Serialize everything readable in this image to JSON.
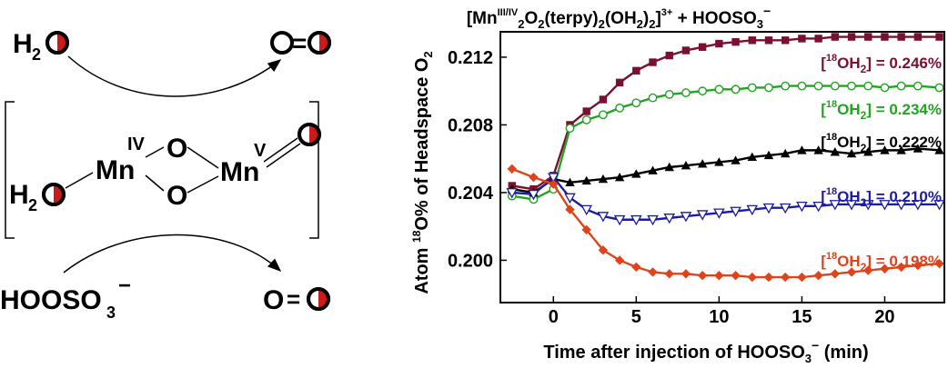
{
  "scheme": {
    "water_top": {
      "main": "H",
      "sub": "2"
    },
    "o2_top": "=",
    "mn_left": "Mn",
    "mn_left_ox": "IV",
    "mn_right": "Mn",
    "mn_right_ox": "V",
    "bridge_o_top": "O",
    "bridge_o_bottom": "O",
    "water_left": {
      "main": "H",
      "sub": "2"
    },
    "oxidant": {
      "main": "HOOSO",
      "sub": "3",
      "sup": "−"
    },
    "o2_bottom": {
      "left": "O",
      "bond": "="
    },
    "colors": {
      "o16": "#ffffff",
      "o18": "#cc1a1a",
      "outline": "#000000"
    }
  },
  "chart_data": {
    "type": "line",
    "title": "[Mn(III/IV)2O2(terpy)2(OH2)2]3+ + HOOSO3−",
    "xlabel": "Time after injection of HOOSO3− (min)",
    "ylabel": "Atom 18O% of Headspace O2",
    "xlim": [
      -3.2,
      23.6
    ],
    "ylim": [
      0.1975,
      0.2135
    ],
    "xticks": [
      0,
      5,
      10,
      15,
      20
    ],
    "yticks": [
      0.2,
      0.204,
      0.208,
      0.212
    ],
    "ytick_labels": [
      "0.200",
      "0.204",
      "0.208",
      "0.212"
    ],
    "series": [
      {
        "name": "[18OH2] = 0.246%",
        "color": "#7a1030",
        "marker": "square",
        "x": [
          -2.5,
          -1.2,
          0,
          1,
          2,
          3,
          4,
          5,
          6,
          7,
          8,
          9,
          10,
          11,
          12,
          13,
          14,
          15,
          16,
          17,
          18,
          19,
          20,
          21,
          22,
          23.3
        ],
        "y": [
          0.2044,
          0.2042,
          0.205,
          0.208,
          0.2088,
          0.2095,
          0.2105,
          0.2112,
          0.2117,
          0.2121,
          0.2124,
          0.2126,
          0.2128,
          0.2129,
          0.213,
          0.213,
          0.213,
          0.2131,
          0.2131,
          0.2132,
          0.2132,
          0.2132,
          0.2132,
          0.2132,
          0.2132,
          0.2132
        ]
      },
      {
        "name": "[18OH2] = 0.234%",
        "color": "#22a322",
        "marker": "circle",
        "x": [
          -2.5,
          -1.2,
          0,
          1,
          2,
          3,
          4,
          5,
          6,
          7,
          8,
          9,
          10,
          11,
          12,
          13,
          14,
          15,
          16,
          17,
          18,
          19,
          20,
          21,
          22,
          23.3
        ],
        "y": [
          0.2038,
          0.2036,
          0.2042,
          0.2078,
          0.2083,
          0.2086,
          0.209,
          0.2093,
          0.2096,
          0.2098,
          0.2099,
          0.21,
          0.2101,
          0.2101,
          0.2102,
          0.2102,
          0.2103,
          0.2103,
          0.2103,
          0.2103,
          0.2103,
          0.2103,
          0.2102,
          0.2103,
          0.2103,
          0.2102
        ]
      },
      {
        "name": "[18OH2] = 0.222%",
        "color": "#000000",
        "marker": "triangle",
        "x": [
          -2.5,
          -1.2,
          0,
          1,
          2,
          3,
          4,
          5,
          6,
          7,
          8,
          9,
          10,
          11,
          12,
          13,
          14,
          15,
          16,
          17,
          18,
          19,
          20,
          21,
          22,
          23.3
        ],
        "y": [
          0.2042,
          0.204,
          0.2048,
          0.2046,
          0.2047,
          0.2048,
          0.2049,
          0.2051,
          0.2053,
          0.2055,
          0.2056,
          0.2057,
          0.2058,
          0.2059,
          0.2061,
          0.2062,
          0.2063,
          0.2065,
          0.2065,
          0.2064,
          0.2063,
          0.2064,
          0.2065,
          0.2065,
          0.2066,
          0.2065
        ]
      },
      {
        "name": "[18OH2] = 0.210%",
        "color": "#1c1ca3",
        "marker": "triangle-down",
        "x": [
          -2.5,
          -1.2,
          0,
          1,
          2,
          3,
          4,
          5,
          6,
          7,
          8,
          9,
          10,
          11,
          12,
          13,
          14,
          15,
          16,
          17,
          18,
          19,
          20,
          21,
          22,
          23.3
        ],
        "y": [
          0.204,
          0.2039,
          0.2049,
          0.2037,
          0.203,
          0.2026,
          0.2024,
          0.2024,
          0.2024,
          0.2025,
          0.2026,
          0.2027,
          0.2028,
          0.2029,
          0.203,
          0.2031,
          0.2031,
          0.2032,
          0.2032,
          0.2033,
          0.2033,
          0.2033,
          0.2033,
          0.2033,
          0.2033,
          0.2033
        ]
      },
      {
        "name": "[18OH2] = 0.198%",
        "color": "#e0421a",
        "marker": "diamond",
        "x": [
          -2.5,
          -1.2,
          0,
          1,
          2,
          3,
          4,
          5,
          6,
          7,
          8,
          9,
          10,
          11,
          12,
          13,
          14,
          15,
          16,
          17,
          18,
          19,
          20,
          21,
          22,
          23.3
        ],
        "y": [
          0.2054,
          0.2049,
          0.2045,
          0.203,
          0.2018,
          0.2006,
          0.2,
          0.1996,
          0.1993,
          0.1992,
          0.1992,
          0.1991,
          0.1991,
          0.1991,
          0.199,
          0.199,
          0.199,
          0.199,
          0.1991,
          0.1992,
          0.1993,
          0.1994,
          0.1995,
          0.1996,
          0.1997,
          0.1998
        ]
      }
    ],
    "labels": [
      {
        "text": "[18OH2] = 0.246%",
        "color": "#7a1030"
      },
      {
        "text": "[18OH2] = 0.234%",
        "color": "#22a322"
      },
      {
        "text": "[18OH2] = 0.222%",
        "color": "#000000"
      },
      {
        "text": "[18OH2] = 0.210%",
        "color": "#1c1ca3"
      },
      {
        "text": "[18OH2] = 0.198%",
        "color": "#e0421a"
      }
    ]
  }
}
